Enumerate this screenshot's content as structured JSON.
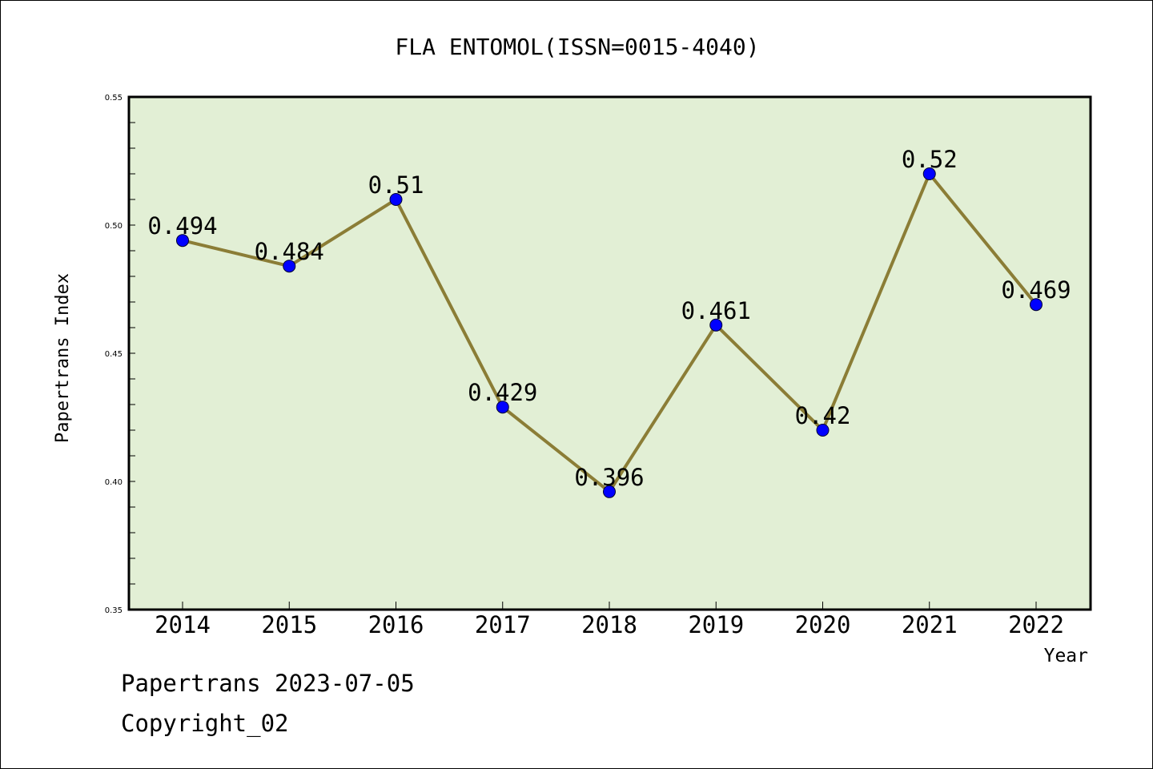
{
  "chart_data": {
    "type": "line",
    "title": "FLA ENTOMOL(ISSN=0015-4040)",
    "xlabel": "Year",
    "ylabel": "Papertrans Index",
    "categories": [
      "2014",
      "2015",
      "2016",
      "2017",
      "2018",
      "2019",
      "2020",
      "2021",
      "2022"
    ],
    "series": [
      {
        "values": [
          0.494,
          0.484,
          0.51,
          0.429,
          0.396,
          0.461,
          0.42,
          0.52,
          0.469
        ],
        "data_labels": [
          "0.494",
          "0.484",
          "0.51",
          "0.429",
          "0.396",
          "0.461",
          "0.42",
          "0.52",
          "0.469"
        ]
      }
    ],
    "ylim": [
      0.35,
      0.55
    ],
    "yticks": [
      "0.35",
      "0.40",
      "0.45",
      "0.50",
      "0.55"
    ],
    "grid": false,
    "colors": {
      "plot_background": "#e2efd5",
      "line": "#8b7d36",
      "marker": "#0000ff"
    }
  },
  "footer": {
    "line1": "Papertrans 2023-07-05",
    "line2": "Copyright_02"
  }
}
